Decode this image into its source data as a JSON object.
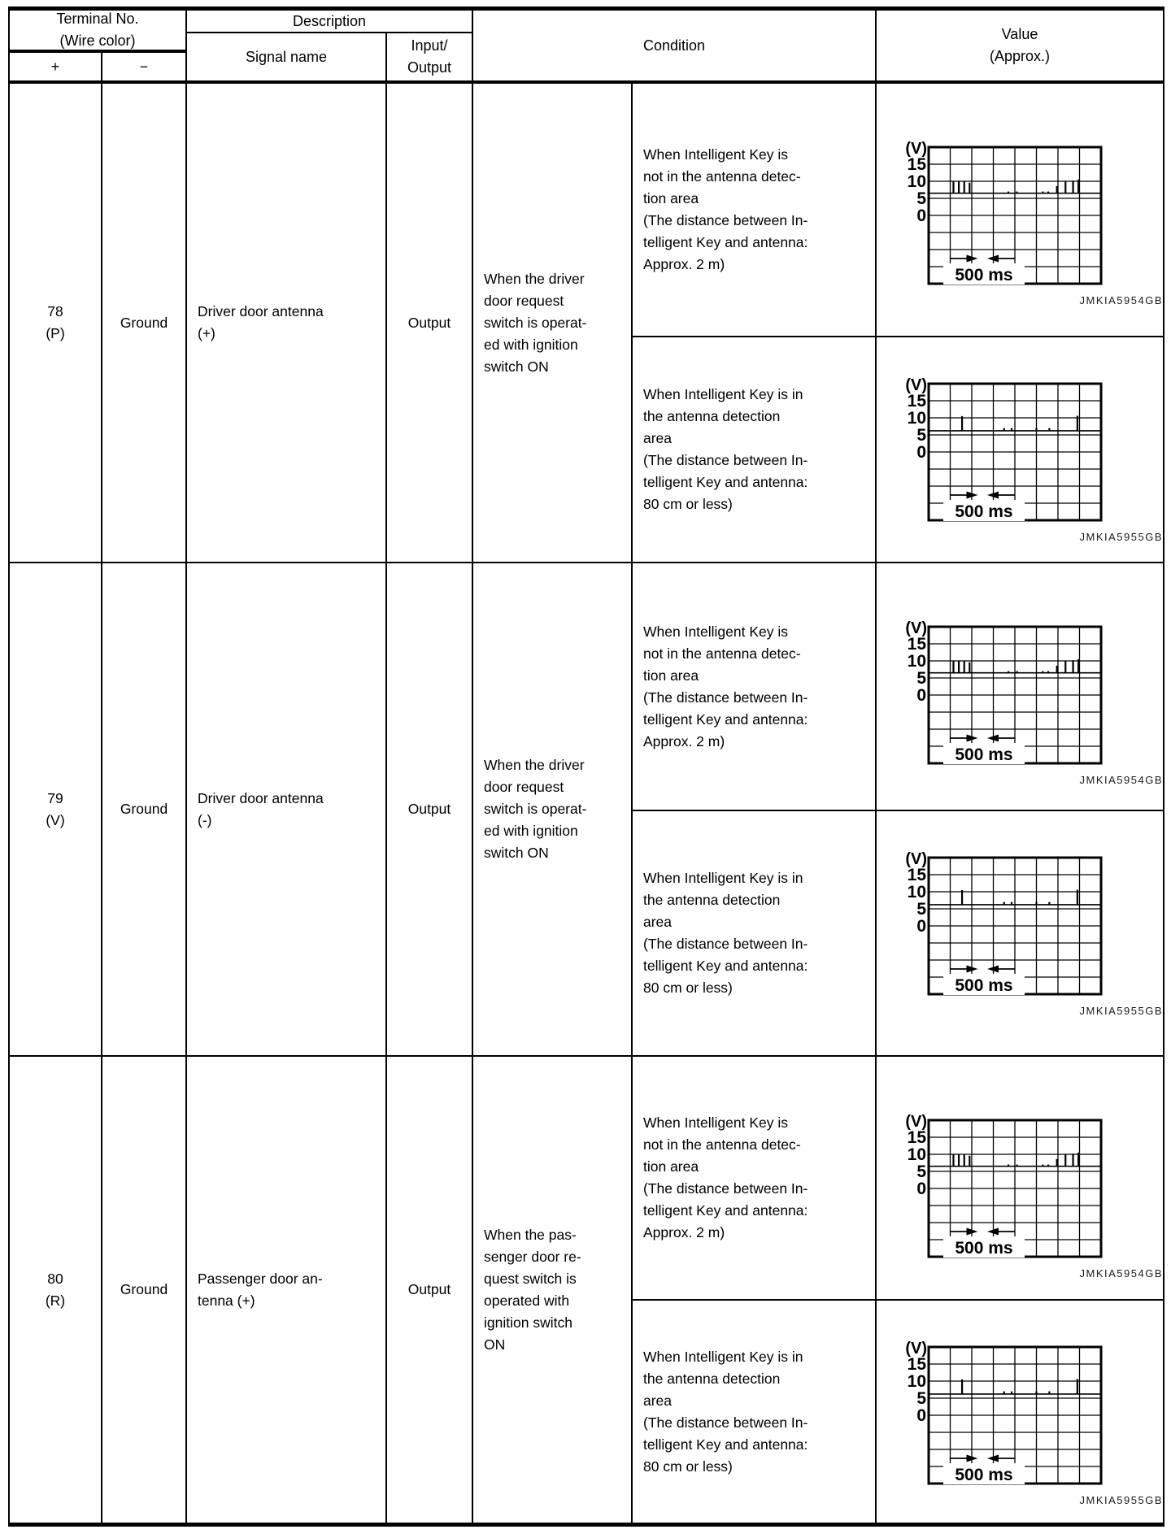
{
  "header": {
    "terminal_no": "Terminal No.\n(Wire color)",
    "plus": "+",
    "minus": "−",
    "description": "Description",
    "signal_name": "Signal name",
    "input_output": "Input/\nOutput",
    "condition": "Condition",
    "value": "Value\n(Approx.)"
  },
  "rows": [
    {
      "terminal": "78\n(P)",
      "ground": "Ground",
      "signal_name": "Driver door antenna\n(+)",
      "io": "Output",
      "condition": "When the driver\ndoor request\nswitch is operat-\ned with ignition\nswitch ON",
      "sub_conditions": [
        {
          "text": "When Intelligent Key is\nnot in the antenna detec-\ntion area\n(The distance between In-\ntelligent Key and antenna:\nApprox. 2 m)",
          "chart_type": "A"
        },
        {
          "text": "When Intelligent Key is in\nthe antenna detection\narea\n(The distance between In-\ntelligent Key and antenna:\n80 cm or less)",
          "chart_type": "B"
        }
      ]
    },
    {
      "terminal": "79\n(V)",
      "ground": "Ground",
      "signal_name": "Driver door antenna\n(-)",
      "io": "Output",
      "condition": "When the driver\ndoor request\nswitch is operat-\ned with ignition\nswitch ON",
      "sub_conditions": [
        {
          "text": "When Intelligent Key is\nnot in the antenna detec-\ntion area\n(The distance between In-\ntelligent Key and antenna:\nApprox. 2 m)",
          "chart_type": "A"
        },
        {
          "text": "When Intelligent Key is in\nthe antenna detection\narea\n(The distance between In-\ntelligent Key and antenna:\n80 cm or less)",
          "chart_type": "B"
        }
      ]
    },
    {
      "terminal": "80\n(R)",
      "ground": "Ground",
      "signal_name": "Passenger door an-\ntenna (+)",
      "io": "Output",
      "condition": "When the pas-\nsenger door re-\nquest switch is\noperated with\nignition switch\nON",
      "sub_conditions": [
        {
          "text": "When Intelligent Key is\nnot in the antenna detec-\ntion area\n(The distance between In-\ntelligent Key and antenna:\nApprox. 2 m)",
          "chart_type": "A"
        },
        {
          "text": "When Intelligent Key is in\nthe antenna detection\narea\n(The distance between In-\ntelligent Key and antenna:\n80 cm or less)",
          "chart_type": "B"
        }
      ]
    }
  ],
  "chart_data": {
    "type": "line",
    "description": "Oscilloscope voltage waveforms, 8x8 division grid",
    "x_divisions": 8,
    "y_divisions": 8,
    "ms_per_division": 250,
    "types": {
      "A": {
        "figure_id": "JMKIA5954GB",
        "y_unit": "(V)",
        "y_ticks": [
          15,
          10,
          5,
          0
        ],
        "time_scale": "500 ms",
        "baseline_v": 6.5,
        "pulses": [
          [
            1.15,
            10
          ],
          [
            1.4,
            10
          ],
          [
            1.65,
            10
          ],
          [
            1.9,
            9.6
          ],
          [
            3.7,
            7
          ],
          [
            4.1,
            7
          ],
          [
            5.3,
            7
          ],
          [
            5.55,
            7
          ],
          [
            5.95,
            8.6
          ],
          [
            6.35,
            10
          ],
          [
            6.7,
            10.2
          ],
          [
            6.95,
            10.5
          ]
        ]
      },
      "B": {
        "figure_id": "JMKIA5955GB",
        "y_unit": "(V)",
        "y_ticks": [
          15,
          10,
          5,
          0
        ],
        "time_scale": "500 ms",
        "baseline_v": 6.2,
        "pulses": [
          [
            1.55,
            10.5
          ],
          [
            3.5,
            7
          ],
          [
            3.85,
            7
          ],
          [
            5.0,
            7
          ],
          [
            5.6,
            7
          ],
          [
            6.9,
            10.6
          ]
        ]
      }
    }
  }
}
